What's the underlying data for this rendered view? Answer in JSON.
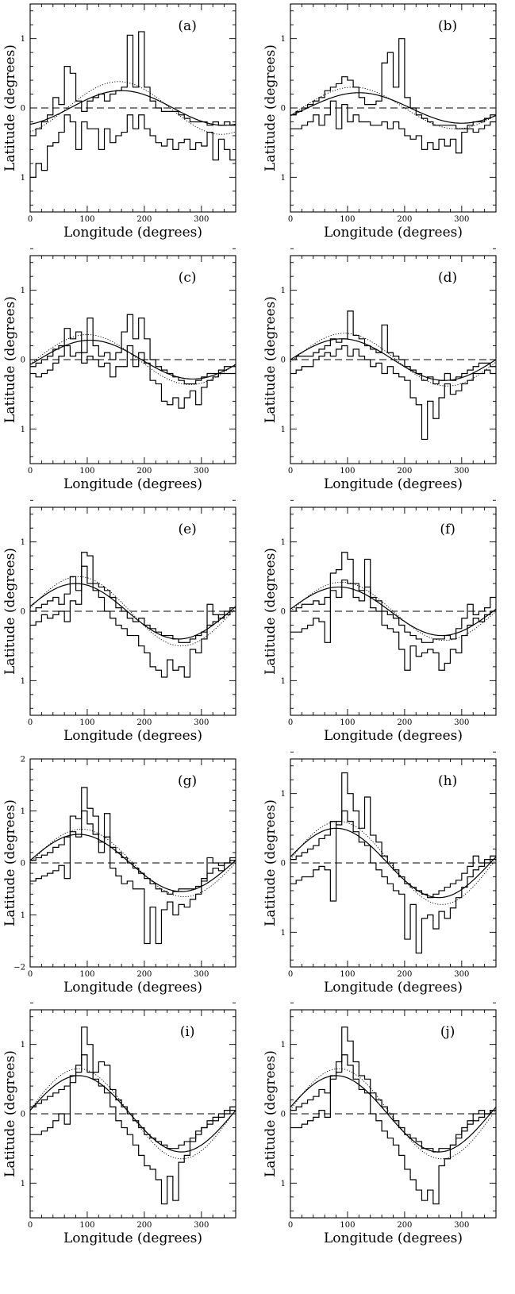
{
  "figure": {
    "xlabel": "Longitude (degrees)",
    "ylabel": "Latitude (degrees)"
  },
  "chart_data": [
    {
      "panel": "(a)",
      "type": "line",
      "xlim": [
        0,
        360
      ],
      "ylim": [
        -1.5,
        1.5
      ],
      "xticks": [
        0,
        100,
        200,
        300
      ],
      "yticks": [
        -1,
        0,
        1
      ],
      "ytick_labels": [
        "1",
        "0",
        "1"
      ],
      "xlabel": "Longitude (degrees)",
      "ylabel": "Latitude (degrees)",
      "fit_solid": {
        "amplitude": 0.25,
        "peak_longitude": 160
      },
      "fit_dotted": {
        "amplitude": 0.38,
        "peak_longitude": 155
      },
      "reference_line": 0,
      "bin_width": 10,
      "hist_upper": [
        -0.4,
        -0.3,
        -0.2,
        -0.1,
        0.15,
        0.05,
        0.6,
        0.5,
        0.1,
        -0.05,
        0.1,
        0.15,
        0.2,
        0.1,
        0.2,
        0.25,
        0.3,
        1.05,
        0.3,
        1.1,
        0.3,
        0.1,
        0.0,
        -0.05,
        -0.05,
        -0.05,
        -0.1,
        -0.15,
        -0.2,
        -0.2,
        -0.2,
        -0.25,
        -0.2,
        -0.25,
        -0.2,
        -0.25
      ],
      "hist_lower": [
        -1.0,
        -0.8,
        -0.9,
        -0.55,
        -0.5,
        -0.35,
        -0.1,
        -0.2,
        -0.6,
        -0.2,
        -0.3,
        -0.3,
        -0.6,
        -0.3,
        -0.5,
        -0.4,
        -0.35,
        -0.1,
        -0.3,
        -0.1,
        -0.3,
        -0.4,
        -0.5,
        -0.55,
        -0.45,
        -0.6,
        -0.5,
        -0.45,
        -0.6,
        -0.5,
        -0.55,
        -0.35,
        -0.75,
        -0.45,
        -0.6,
        -0.75
      ]
    },
    {
      "panel": "(b)",
      "type": "line",
      "xlim": [
        0,
        360
      ],
      "ylim": [
        -1.5,
        1.5
      ],
      "xticks": [
        0,
        100,
        200,
        300
      ],
      "yticks": [
        -1,
        0,
        1
      ],
      "ytick_labels": [
        "1",
        "0",
        "1"
      ],
      "xlabel": "Longitude (degrees)",
      "ylabel": "Latitude (degrees)",
      "fit_solid": {
        "amplitude": 0.22,
        "peak_longitude": 120
      },
      "fit_dotted": {
        "amplitude": 0.3,
        "peak_longitude": 110
      },
      "reference_line": 0,
      "bin_width": 10,
      "hist_upper": [
        -0.1,
        -0.05,
        0.0,
        0.05,
        0.1,
        0.15,
        0.25,
        0.3,
        0.35,
        0.45,
        0.4,
        0.3,
        0.15,
        0.05,
        0.05,
        0.1,
        0.65,
        0.8,
        0.3,
        1.0,
        0.15,
        0.0,
        -0.1,
        -0.15,
        -0.2,
        -0.25,
        -0.25,
        -0.25,
        -0.25,
        -0.3,
        -0.3,
        -0.25,
        -0.2,
        -0.2,
        -0.15,
        -0.1
      ],
      "hist_lower": [
        -0.3,
        -0.3,
        -0.25,
        -0.2,
        -0.1,
        -0.25,
        -0.1,
        0.1,
        -0.3,
        0.05,
        -0.2,
        -0.1,
        -0.2,
        -0.2,
        -0.25,
        -0.25,
        -0.2,
        -0.3,
        -0.2,
        -0.3,
        -0.4,
        -0.45,
        -0.4,
        -0.6,
        -0.5,
        -0.6,
        -0.45,
        -0.55,
        -0.45,
        -0.65,
        -0.35,
        -0.3,
        -0.35,
        -0.3,
        -0.25,
        -0.2
      ]
    },
    {
      "panel": "(c)",
      "type": "line",
      "xlim": [
        0,
        360
      ],
      "ylim": [
        -1.5,
        1.5
      ],
      "xticks": [
        0,
        100,
        200,
        300
      ],
      "yticks": [
        -1,
        0,
        1
      ],
      "ytick_labels": [
        "1",
        "0",
        "1"
      ],
      "xlabel": "Longitude (degrees)",
      "ylabel": "Latitude (degrees)",
      "fit_solid": {
        "amplitude": 0.28,
        "peak_longitude": 105
      },
      "fit_dotted": {
        "amplitude": 0.36,
        "peak_longitude": 100
      },
      "reference_line": 0,
      "bin_width": 10,
      "hist_upper": [
        -0.1,
        -0.05,
        0.0,
        0.05,
        0.15,
        0.2,
        0.45,
        0.3,
        0.4,
        0.1,
        0.6,
        0.2,
        0.05,
        0.1,
        0.0,
        0.1,
        0.4,
        0.65,
        0.3,
        0.6,
        0.3,
        0.0,
        -0.1,
        -0.15,
        -0.2,
        -0.25,
        -0.3,
        -0.35,
        -0.35,
        -0.3,
        -0.25,
        -0.2,
        -0.2,
        -0.15,
        -0.1,
        -0.1
      ],
      "hist_lower": [
        -0.2,
        -0.25,
        -0.2,
        -0.15,
        -0.05,
        0.05,
        0.2,
        0.05,
        0.1,
        -0.05,
        0.05,
        0.0,
        -0.1,
        -0.05,
        -0.25,
        -0.1,
        -0.1,
        0.2,
        -0.1,
        0.1,
        -0.05,
        -0.3,
        -0.35,
        -0.6,
        -0.65,
        -0.55,
        -0.7,
        -0.55,
        -0.45,
        -0.65,
        -0.4,
        -0.3,
        -0.25,
        -0.2,
        -0.2,
        -0.2
      ]
    },
    {
      "panel": "(d)",
      "type": "line",
      "xlim": [
        0,
        360
      ],
      "ylim": [
        -1.5,
        1.5
      ],
      "xticks": [
        0,
        100,
        200,
        300
      ],
      "yticks": [
        -1,
        0,
        1
      ],
      "ytick_labels": [
        "1",
        "0",
        "1"
      ],
      "xlabel": "Longitude (degrees)",
      "ylabel": "Latitude (degrees)",
      "fit_solid": {
        "amplitude": 0.3,
        "peak_longitude": 90
      },
      "fit_dotted": {
        "amplitude": 0.38,
        "peak_longitude": 95
      },
      "reference_line": 0,
      "bin_width": 10,
      "hist_upper": [
        0.0,
        0.05,
        0.05,
        0.05,
        0.1,
        0.15,
        0.2,
        0.3,
        0.25,
        0.3,
        0.7,
        0.35,
        0.3,
        0.2,
        0.15,
        0.1,
        0.5,
        0.1,
        0.05,
        0.0,
        -0.1,
        -0.15,
        -0.2,
        -0.3,
        -0.25,
        -0.35,
        -0.3,
        -0.2,
        -0.3,
        -0.25,
        -0.2,
        -0.15,
        -0.1,
        -0.05,
        -0.05,
        -0.1
      ],
      "hist_lower": [
        -0.2,
        -0.15,
        -0.1,
        -0.1,
        0.0,
        0.05,
        0.1,
        0.05,
        0.15,
        0.2,
        0.05,
        0.15,
        0.05,
        0.0,
        -0.1,
        -0.05,
        -0.2,
        -0.1,
        -0.2,
        -0.25,
        -0.3,
        -0.55,
        -0.65,
        -1.15,
        -0.6,
        -0.85,
        -0.55,
        -0.35,
        -0.5,
        -0.45,
        -0.35,
        -0.3,
        -0.2,
        -0.2,
        -0.15,
        -0.2
      ]
    },
    {
      "panel": "(e)",
      "type": "line",
      "xlim": [
        0,
        360
      ],
      "ylim": [
        -1.5,
        1.5
      ],
      "xticks": [
        0,
        100,
        200,
        300
      ],
      "yticks": [
        -1,
        0,
        1
      ],
      "ytick_labels": [
        "1",
        "0",
        "1"
      ],
      "xlabel": "Longitude (degrees)",
      "ylabel": "Latitude (degrees)",
      "fit_solid": {
        "amplitude": 0.4,
        "peak_longitude": 80
      },
      "fit_dotted": {
        "amplitude": 0.5,
        "peak_longitude": 85
      },
      "reference_line": 0,
      "bin_width": 10,
      "hist_upper": [
        0.0,
        0.05,
        0.1,
        0.15,
        0.2,
        0.1,
        0.25,
        0.5,
        0.3,
        0.85,
        0.8,
        0.4,
        0.35,
        0.3,
        0.2,
        0.05,
        0.0,
        -0.1,
        -0.15,
        -0.1,
        -0.2,
        -0.25,
        -0.3,
        -0.35,
        -0.35,
        -0.4,
        -0.45,
        -0.45,
        -0.4,
        -0.35,
        -0.3,
        -0.2,
        -0.15,
        -0.05,
        0.0,
        0.05
      ],
      "hist_lower": [
        -0.2,
        -0.15,
        -0.05,
        -0.1,
        -0.05,
        0.0,
        -0.15,
        0.15,
        0.1,
        0.65,
        0.4,
        0.3,
        0.2,
        0.0,
        -0.1,
        -0.2,
        -0.25,
        -0.35,
        -0.35,
        -0.5,
        -0.6,
        -0.8,
        -0.85,
        -0.95,
        -0.7,
        -0.85,
        -0.8,
        -0.95,
        -0.55,
        -0.6,
        -0.4,
        0.1,
        -0.05,
        -0.1,
        -0.05,
        0.0
      ]
    },
    {
      "panel": "(f)",
      "type": "line",
      "xlim": [
        0,
        360
      ],
      "ylim": [
        -1.5,
        1.5
      ],
      "xticks": [
        0,
        100,
        200,
        300
      ],
      "yticks": [
        -1,
        0,
        1
      ],
      "ytick_labels": [
        "1",
        "0",
        "1"
      ],
      "xlabel": "Longitude (degrees)",
      "ylabel": "Latitude (degrees)",
      "fit_solid": {
        "amplitude": 0.35,
        "peak_longitude": 85
      },
      "fit_dotted": {
        "amplitude": 0.42,
        "peak_longitude": 90
      },
      "reference_line": 0,
      "bin_width": 10,
      "hist_upper": [
        0.0,
        0.05,
        0.1,
        0.1,
        0.15,
        0.1,
        0.2,
        0.55,
        0.6,
        0.85,
        0.75,
        0.4,
        0.3,
        0.75,
        0.2,
        0.15,
        0.0,
        -0.05,
        -0.1,
        -0.2,
        -0.3,
        -0.35,
        -0.4,
        -0.45,
        -0.45,
        -0.4,
        -0.4,
        -0.35,
        -0.4,
        -0.25,
        -0.1,
        0.1,
        -0.05,
        0.0,
        0.05,
        0.2
      ],
      "hist_lower": [
        -0.3,
        -0.3,
        -0.25,
        -0.2,
        -0.1,
        -0.15,
        -0.45,
        0.3,
        0.2,
        0.45,
        0.4,
        0.2,
        0.15,
        0.35,
        0.05,
        0.0,
        -0.2,
        -0.25,
        -0.3,
        -0.55,
        -0.85,
        -0.5,
        -0.65,
        -0.6,
        -0.55,
        -0.6,
        -0.85,
        -0.75,
        -0.55,
        -0.6,
        -0.35,
        -0.2,
        -0.1,
        -0.15,
        -0.05,
        0.0
      ]
    },
    {
      "panel": "(g)",
      "type": "line",
      "xlim": [
        0,
        360
      ],
      "ylim": [
        -2,
        2
      ],
      "xticks": [
        0,
        100,
        200,
        300
      ],
      "yticks": [
        -2,
        -1,
        0,
        1,
        2
      ],
      "ytick_labels": [
        "−2",
        "1",
        "0",
        "1",
        "2"
      ],
      "xlabel": "Longitude (degrees)",
      "ylabel": "Latitude (degrees)",
      "fit_solid": {
        "amplitude": 0.55,
        "peak_longitude": 85
      },
      "fit_dotted": {
        "amplitude": 0.65,
        "peak_longitude": 90
      },
      "reference_line": 0,
      "bin_width": 10,
      "hist_upper": [
        0.05,
        0.1,
        0.15,
        0.2,
        0.3,
        0.35,
        0.5,
        0.9,
        0.85,
        1.45,
        1.05,
        0.9,
        0.4,
        0.95,
        0.3,
        0.2,
        0.1,
        0.0,
        -0.1,
        -0.2,
        -0.3,
        -0.4,
        -0.5,
        -0.55,
        -0.6,
        -0.55,
        -0.5,
        -0.5,
        -0.5,
        -0.45,
        -0.3,
        0.1,
        0.0,
        -0.05,
        0.0,
        0.05
      ],
      "hist_lower": [
        -0.35,
        -0.3,
        -0.25,
        -0.2,
        -0.15,
        -0.05,
        -0.3,
        0.6,
        0.5,
        1.0,
        0.75,
        0.55,
        0.2,
        0.5,
        -0.1,
        -0.25,
        -0.4,
        -0.35,
        -0.5,
        -0.5,
        -1.55,
        -0.85,
        -1.55,
        -0.9,
        -0.75,
        -1.0,
        -0.8,
        -0.85,
        -0.7,
        -0.6,
        -0.35,
        -0.2,
        -0.1,
        -0.15,
        0.0,
        0.1
      ]
    },
    {
      "panel": "(h)",
      "type": "line",
      "xlim": [
        0,
        360
      ],
      "ylim": [
        -1.5,
        1.5
      ],
      "xticks": [
        0,
        100,
        200,
        300
      ],
      "yticks": [
        -1,
        0,
        1
      ],
      "ytick_labels": [
        "1",
        "0",
        "1"
      ],
      "xlabel": "Longitude (degrees)",
      "ylabel": "Latitude (degrees)",
      "fit_solid": {
        "amplitude": 0.5,
        "peak_longitude": 80
      },
      "fit_dotted": {
        "amplitude": 0.6,
        "peak_longitude": 85
      },
      "reference_line": 0,
      "bin_width": 10,
      "hist_upper": [
        0.05,
        0.1,
        0.15,
        0.2,
        0.25,
        0.35,
        0.4,
        0.6,
        0.55,
        1.3,
        1.0,
        0.75,
        0.5,
        0.95,
        0.4,
        0.3,
        0.1,
        0.0,
        -0.1,
        -0.2,
        -0.3,
        -0.35,
        -0.4,
        -0.45,
        -0.5,
        -0.45,
        -0.4,
        -0.35,
        -0.3,
        -0.25,
        -0.15,
        -0.05,
        0.1,
        0.0,
        0.05,
        0.1
      ],
      "hist_lower": [
        -0.3,
        -0.25,
        -0.2,
        -0.2,
        -0.1,
        -0.05,
        -0.1,
        -0.55,
        0.6,
        0.75,
        0.6,
        0.45,
        0.3,
        0.25,
        0.0,
        -0.1,
        -0.2,
        -0.3,
        -0.4,
        -0.45,
        -1.1,
        -0.6,
        -1.3,
        -0.8,
        -0.75,
        -0.95,
        -0.7,
        -0.8,
        -0.65,
        -0.5,
        -0.35,
        -0.2,
        -0.1,
        -0.05,
        0.0,
        0.05
      ]
    },
    {
      "panel": "(i)",
      "type": "line",
      "xlim": [
        0,
        360
      ],
      "ylim": [
        -1.5,
        1.5
      ],
      "xticks": [
        0,
        100,
        200,
        300
      ],
      "yticks": [
        -1,
        0,
        1
      ],
      "ytick_labels": [
        "1",
        "0",
        "1"
      ],
      "xlabel": "Longitude (degrees)",
      "ylabel": "Latitude (degrees)",
      "fit_solid": {
        "amplitude": 0.55,
        "peak_longitude": 85
      },
      "fit_dotted": {
        "amplitude": 0.65,
        "peak_longitude": 85
      },
      "reference_line": 0,
      "bin_width": 10,
      "hist_upper": [
        0.1,
        0.15,
        0.2,
        0.25,
        0.3,
        0.35,
        0.4,
        0.55,
        0.7,
        1.25,
        1.0,
        0.6,
        0.75,
        0.7,
        0.35,
        0.2,
        0.1,
        0.0,
        -0.1,
        -0.2,
        -0.3,
        -0.35,
        -0.4,
        -0.45,
        -0.5,
        -0.5,
        -0.45,
        -0.4,
        -0.35,
        -0.3,
        -0.2,
        -0.1,
        -0.05,
        0.0,
        0.05,
        0.1
      ],
      "hist_lower": [
        -0.3,
        -0.3,
        -0.25,
        -0.2,
        -0.1,
        0.0,
        -0.15,
        0.45,
        0.6,
        0.85,
        0.6,
        0.5,
        0.4,
        0.3,
        0.1,
        -0.1,
        -0.2,
        -0.3,
        -0.45,
        -0.6,
        -0.75,
        -0.8,
        -0.95,
        -1.3,
        -0.9,
        -1.25,
        -0.7,
        -0.6,
        -0.4,
        -0.25,
        -0.2,
        -0.15,
        -0.1,
        -0.05,
        0.0,
        0.05
      ]
    },
    {
      "panel": "(j)",
      "type": "line",
      "xlim": [
        0,
        360
      ],
      "ylim": [
        -1.5,
        1.5
      ],
      "xticks": [
        0,
        100,
        200,
        300
      ],
      "yticks": [
        -1,
        0,
        1
      ],
      "ytick_labels": [
        "1",
        "0",
        "1"
      ],
      "xlabel": "Longitude (degrees)",
      "ylabel": "Latitude (degrees)",
      "fit_solid": {
        "amplitude": 0.55,
        "peak_longitude": 80
      },
      "fit_dotted": {
        "amplitude": 0.65,
        "peak_longitude": 85
      },
      "reference_line": 0,
      "bin_width": 10,
      "hist_upper": [
        0.05,
        0.1,
        0.15,
        0.2,
        0.25,
        0.35,
        0.3,
        0.55,
        0.75,
        1.25,
        1.05,
        0.75,
        0.55,
        0.5,
        0.3,
        0.2,
        0.1,
        0.0,
        -0.1,
        -0.2,
        -0.3,
        -0.35,
        -0.4,
        -0.5,
        -0.5,
        -0.55,
        -0.5,
        -0.5,
        -0.45,
        -0.35,
        -0.25,
        -0.1,
        0.0,
        0.05,
        0.0,
        0.05
      ],
      "hist_lower": [
        -0.2,
        -0.2,
        -0.15,
        -0.1,
        -0.05,
        0.05,
        -0.05,
        0.5,
        0.6,
        0.85,
        0.7,
        0.5,
        0.35,
        0.3,
        0.0,
        -0.1,
        -0.25,
        -0.35,
        -0.45,
        -0.6,
        -0.8,
        -0.95,
        -1.1,
        -1.25,
        -1.1,
        -1.3,
        -0.75,
        -0.65,
        -0.45,
        -0.3,
        -0.2,
        -0.15,
        -0.1,
        -0.05,
        0.0,
        0.05
      ]
    }
  ]
}
